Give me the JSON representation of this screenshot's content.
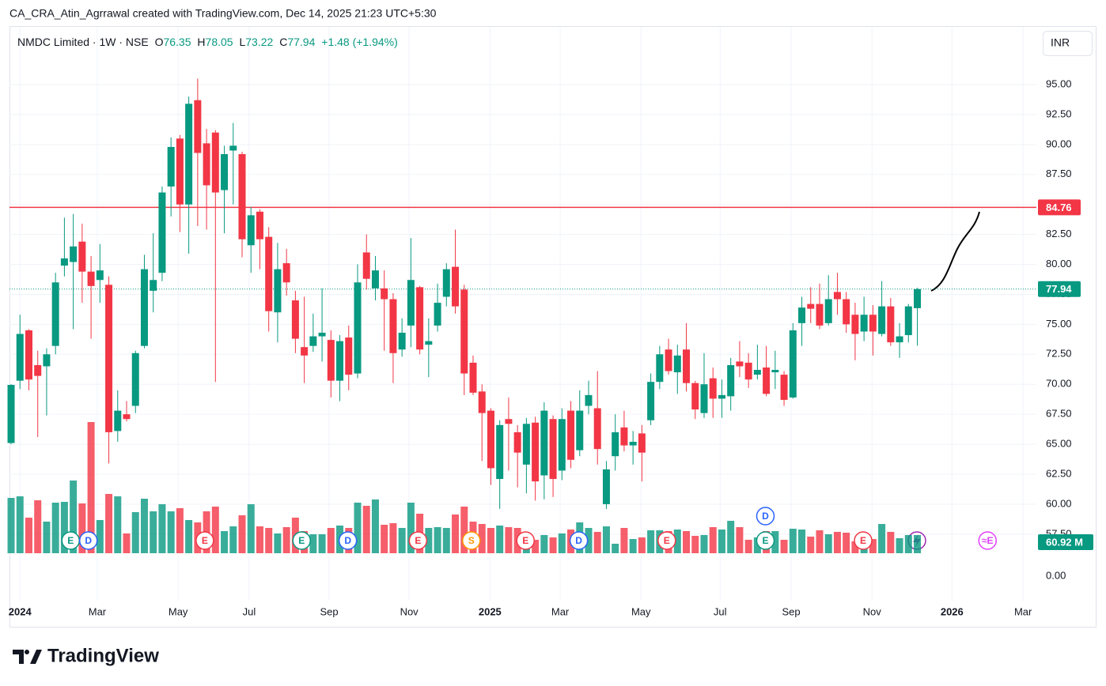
{
  "header": {
    "attribution": "CA_CRA_Atin_Agrrawal created with TradingView.com, Dec 14, 2025 21:23 UTC+5:30",
    "currency": "INR",
    "brand": "TradingView"
  },
  "chart_data": {
    "type": "candlestick",
    "legend": {
      "symbol": "NMDC Limited · 1W · NSE",
      "open_label": "O",
      "high_label": "H",
      "low_label": "L",
      "close_label": "C",
      "change": "+1.48 (+1.94%)"
    },
    "categories": [
      null,
      null,
      null,
      null,
      null,
      null,
      null,
      null,
      null,
      null,
      null,
      null,
      null,
      null,
      null,
      null,
      null,
      null,
      null,
      null,
      null,
      null,
      null,
      null,
      null,
      null,
      null,
      null,
      null,
      null,
      null,
      null,
      null,
      null,
      null,
      null,
      null,
      null,
      null,
      null,
      null,
      null,
      null,
      null,
      null,
      null,
      null,
      null,
      null,
      null,
      null,
      null,
      null,
      null,
      null,
      null,
      null,
      null,
      null,
      null,
      null,
      null,
      null,
      null,
      null,
      null,
      null,
      null,
      null,
      null,
      null,
      null,
      null,
      null,
      null,
      null,
      null,
      null,
      null,
      null,
      null,
      null,
      null,
      null,
      null,
      null,
      null,
      null,
      null,
      null,
      null,
      null,
      null,
      null,
      null,
      null,
      null,
      null,
      null,
      null,
      null,
      null,
      null
    ],
    "open": [
      65.1,
      70.3,
      74.5,
      71.6,
      71.5,
      73.2,
      79.9,
      80.2,
      81.9,
      79.4,
      78.7,
      78.3,
      66.1,
      67.5,
      68.2,
      73.2,
      77.8,
      79.3,
      86.5,
      90.5,
      85.0,
      93.7,
      90.1,
      91.0,
      86.2,
      89.5,
      89.2,
      81.6,
      84.4,
      82.3,
      76.0,
      80.1,
      77.0,
      73.1,
      73.2,
      74.0,
      73.7,
      70.3,
      73.9,
      70.9,
      81.0,
      78.0,
      78.0,
      77.1,
      72.9,
      74.9,
      78.1,
      73.3,
      74.9,
      77.3,
      79.8,
      77.9,
      71.8,
      69.4,
      67.8,
      62.1,
      67.1,
      66.0,
      63.3,
      66.8,
      62.4,
      67.1,
      62.8,
      67.8,
      64.5,
      68.2,
      68.0,
      60.0,
      64.0,
      66.4,
      64.9,
      65.9,
      67.0,
      70.2,
      72.9,
      71.0,
      72.9,
      70.1,
      67.6,
      70.5,
      68.8,
      69.0,
      71.9,
      71.8,
      70.8,
      71.4,
      71.0,
      70.8,
      68.9,
      75.1,
      76.7,
      76.7,
      75.1,
      77.7,
      77.1,
      75.8,
      74.4,
      75.8,
      74.2,
      76.5,
      73.5,
      74.1,
      76.35
    ],
    "high": [
      70.0,
      75.8,
      74.6,
      72.8,
      73.0,
      79.3,
      83.9,
      84.2,
      83.4,
      80.7,
      81.7,
      79.0,
      69.5,
      68.6,
      72.8,
      80.8,
      82.6,
      86.5,
      90.6,
      90.8,
      94.0,
      95.5,
      91.3,
      91.2,
      89.9,
      91.8,
      89.4,
      84.8,
      84.6,
      83.1,
      81.8,
      81.3,
      77.8,
      77.3,
      75.9,
      78.0,
      74.5,
      74.1,
      74.9,
      80.0,
      82.5,
      80.7,
      79.5,
      77.6,
      75.5,
      82.2,
      78.2,
      75.5,
      78.4,
      80.1,
      82.9,
      78.3,
      72.4,
      70.0,
      68.0,
      67.0,
      68.9,
      66.6,
      67.2,
      67.3,
      68.5,
      67.4,
      68.0,
      68.6,
      69.5,
      70.3,
      71.1,
      63.6,
      67.5,
      67.8,
      66.1,
      66.6,
      70.9,
      73.2,
      73.8,
      73.3,
      75.1,
      70.3,
      72.6,
      71.4,
      70.4,
      72.2,
      73.6,
      72.6,
      73.3,
      73.2,
      72.8,
      71.1,
      75.1,
      77.3,
      78.1,
      78.4,
      79.1,
      79.3,
      77.7,
      76.8,
      77.3,
      76.6,
      78.6,
      77.2,
      75.1,
      76.7,
      78.05
    ],
    "low": [
      65.0,
      69.6,
      69.5,
      65.6,
      67.4,
      72.5,
      79.0,
      74.6,
      76.8,
      73.8,
      76.8,
      63.4,
      65.2,
      66.9,
      67.6,
      73.0,
      76.0,
      78.6,
      84.0,
      82.7,
      80.9,
      83.2,
      82.9,
      70.2,
      82.6,
      85.0,
      80.6,
      79.3,
      79.6,
      74.4,
      73.5,
      77.4,
      72.6,
      70.1,
      72.7,
      71.9,
      68.9,
      68.6,
      69.5,
      70.5,
      77.9,
      77.0,
      72.8,
      70.1,
      72.3,
      73.1,
      72.5,
      70.6,
      74.4,
      76.5,
      75.9,
      69.1,
      69.1,
      63.6,
      61.6,
      59.6,
      62.8,
      61.4,
      60.9,
      60.3,
      60.4,
      60.6,
      62.0,
      63.0,
      64.0,
      67.5,
      63.3,
      59.6,
      62.8,
      64.4,
      63.3,
      61.9,
      66.6,
      69.6,
      70.8,
      69.2,
      69.4,
      67.1,
      67.2,
      67.2,
      67.2,
      67.8,
      70.6,
      69.7,
      70.4,
      69.0,
      69.6,
      68.2,
      68.8,
      73.2,
      75.1,
      74.6,
      74.9,
      75.8,
      74.3,
      72.0,
      73.6,
      72.4,
      74.0,
      73.2,
      72.2,
      73.5,
      73.22
    ],
    "close": [
      69.95,
      74.2,
      70.4,
      70.7,
      72.5,
      78.5,
      80.5,
      81.5,
      79.4,
      78.2,
      79.5,
      66.0,
      67.8,
      67.1,
      72.6,
      79.6,
      78.7,
      86.0,
      89.8,
      85.0,
      93.4,
      89.3,
      86.6,
      86.0,
      89.2,
      89.9,
      82.1,
      84.1,
      82.1,
      76.1,
      79.6,
      78.5,
      73.8,
      72.4,
      74.0,
      74.3,
      70.3,
      73.6,
      70.8,
      78.5,
      78.8,
      79.5,
      77.1,
      72.6,
      74.3,
      78.7,
      72.9,
      73.6,
      76.8,
      79.6,
      76.5,
      70.9,
      69.3,
      67.6,
      63.0,
      66.6,
      66.7,
      64.3,
      66.7,
      61.9,
      67.8,
      62.1,
      67.1,
      63.7,
      67.8,
      69.1,
      64.6,
      62.9,
      66.0,
      64.9,
      65.2,
      64.3,
      70.2,
      72.5,
      71.1,
      72.4,
      70.1,
      67.9,
      70.0,
      68.8,
      69.1,
      71.6,
      71.5,
      70.4,
      71.2,
      69.2,
      71.2,
      68.7,
      74.5,
      76.4,
      76.3,
      74.9,
      77.1,
      77.1,
      75.0,
      74.2,
      75.8,
      74.4,
      76.5,
      73.5,
      74.0,
      76.5,
      77.94
    ],
    "volume": [
      185.5,
      190.8,
      119.3,
      177.6,
      106,
      169.6,
      172.3,
      243.8,
      167,
      439.9,
      111.3,
      198.8,
      190.8,
      66.3,
      137.8,
      182.9,
      140.5,
      164.3,
      140.5,
      151.1,
      111.3,
      103.4,
      140.5,
      156.4,
      74.2,
      90.1,
      127.2,
      164.3,
      90.1,
      84.8,
      66.3,
      87.5,
      119.3,
      74.2,
      63.6,
      63.6,
      84.8,
      92.8,
      84.8,
      169.6,
      159,
      180.2,
      95.4,
      100.7,
      84.8,
      169.6,
      132.5,
      84.8,
      87.5,
      84.8,
      129.9,
      156.4,
      106,
      98.1,
      84.8,
      92.8,
      87.5,
      84.8,
      63.6,
      45.1,
      61,
      53,
      66.3,
      79.5,
      103.4,
      84.8,
      71.6,
      90.1,
      31.8,
      84.8,
      47.7,
      53,
      76.9,
      76.9,
      74.2,
      79.5,
      74.2,
      58.3,
      61,
      87.5,
      79.5,
      108.7,
      87.5,
      45.1,
      53,
      74.2,
      74.2,
      45.1,
      82.2,
      79.5,
      55.7,
      76.9,
      63.6,
      71.6,
      68.9,
      39.8,
      63.6,
      47.7,
      98.1,
      71.6,
      50.4,
      61,
      60.92
    ],
    "volume_label": "60.92 M",
    "up_color": "#089981",
    "down_color": "#f23645",
    "xlim": [
      -0.18,
      115.4
    ],
    "xticks": [
      {
        "value": 1,
        "label": "2024"
      },
      {
        "value": 9.7,
        "label": "Mar"
      },
      {
        "value": 18.8,
        "label": "May"
      },
      {
        "value": 26.8,
        "label": "Jul"
      },
      {
        "value": 35.8,
        "label": "Sep"
      },
      {
        "value": 44.8,
        "label": "Nov"
      },
      {
        "value": 53.9,
        "label": "2025"
      },
      {
        "value": 61.8,
        "label": "Mar"
      },
      {
        "value": 70.9,
        "label": "May"
      },
      {
        "value": 79.8,
        "label": "Jul"
      },
      {
        "value": 87.8,
        "label": "Sep"
      },
      {
        "value": 96.9,
        "label": "Nov"
      },
      {
        "value": 105.9,
        "label": "2026"
      },
      {
        "value": 113.9,
        "label": "Mar"
      }
    ],
    "ylim": [
      51.95,
      99.42
    ],
    "yticks": [
      {
        "value": 57.5,
        "label": "57.50"
      },
      {
        "value": 60,
        "label": "60.00"
      },
      {
        "value": 62.5,
        "label": "62.50"
      },
      {
        "value": 65,
        "label": "65.00"
      },
      {
        "value": 67.5,
        "label": "67.50"
      },
      {
        "value": 70,
        "label": "70.00"
      },
      {
        "value": 72.5,
        "label": "72.50"
      },
      {
        "value": 75,
        "label": "75.00"
      },
      {
        "value": 77.5,
        "label": "77.50"
      },
      {
        "value": 80,
        "label": "80.00"
      },
      {
        "value": 82.5,
        "label": "82.50"
      },
      {
        "value": 85,
        "label": "85.00"
      },
      {
        "value": 87.5,
        "label": "87.50"
      },
      {
        "value": 90,
        "label": "90.00"
      },
      {
        "value": 92.5,
        "label": "92.50"
      },
      {
        "value": 95,
        "label": "95.00"
      }
    ],
    "zero_label": "0.00",
    "grid": true,
    "hlines": [
      {
        "value": 84.76,
        "label": "84.76",
        "color": "#f23645"
      }
    ],
    "last_price": {
      "value": 77.94,
      "label": "77.94"
    },
    "events": [
      {
        "x": 6.7,
        "label": "E",
        "color": "#089981"
      },
      {
        "x": 8.7,
        "label": "D",
        "color": "#2962ff"
      },
      {
        "x": 21.8,
        "label": "E",
        "color": "#f23645"
      },
      {
        "x": 32.7,
        "label": "E",
        "color": "#089981"
      },
      {
        "x": 37.9,
        "label": "D",
        "color": "#2962ff"
      },
      {
        "x": 45.8,
        "label": "E",
        "color": "#f23645"
      },
      {
        "x": 51.8,
        "label": "S",
        "color": "#ff9800"
      },
      {
        "x": 57.9,
        "label": "E",
        "color": "#f23645"
      },
      {
        "x": 63.9,
        "label": "D",
        "color": "#2962ff"
      },
      {
        "x": 73.8,
        "label": "E",
        "color": "#f23645"
      },
      {
        "x": 84.9,
        "label": "E",
        "color": "#089981"
      },
      {
        "x": 84.9,
        "label": "D",
        "color": "#2962ff"
      },
      {
        "x": 95.9,
        "label": "E",
        "color": "#f23645"
      },
      {
        "x": 109.9,
        "label": "≈E",
        "color": "#e040fb"
      }
    ]
  }
}
